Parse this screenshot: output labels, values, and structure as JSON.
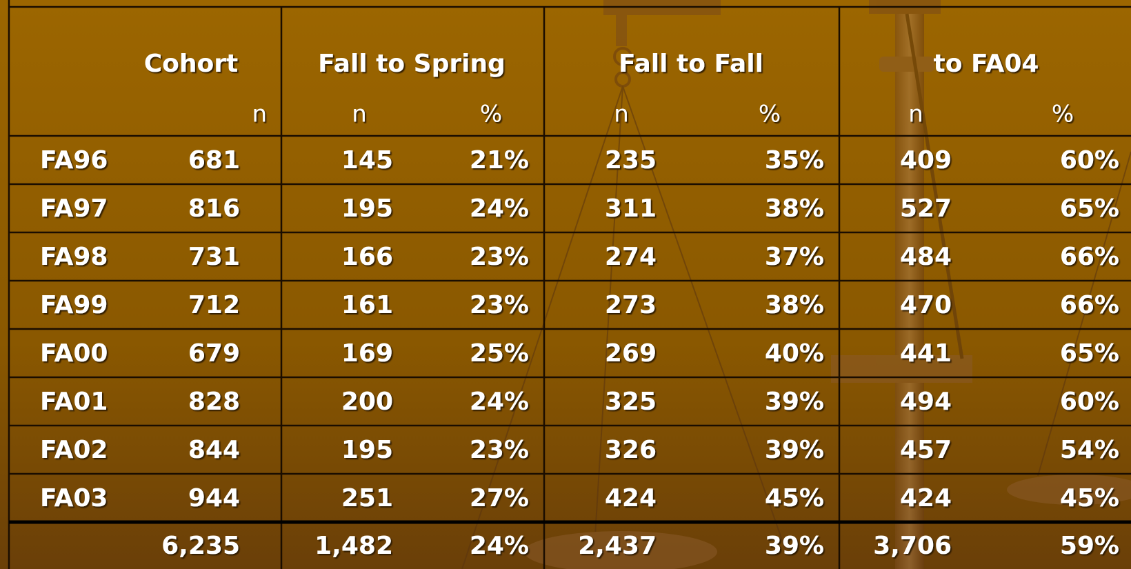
{
  "table": {
    "groups": [
      "Cohort",
      "Fall to Spring",
      "Fall to Fall",
      "to FA04"
    ],
    "subheaders": [
      "n",
      "n",
      "%",
      "n",
      "%",
      "n",
      "%"
    ],
    "rows": [
      [
        "FA96",
        "681",
        "145",
        "21%",
        "235",
        "35%",
        "409",
        "60%"
      ],
      [
        "FA97",
        "816",
        "195",
        "24%",
        "311",
        "38%",
        "527",
        "65%"
      ],
      [
        "FA98",
        "731",
        "166",
        "23%",
        "274",
        "37%",
        "484",
        "66%"
      ],
      [
        "FA99",
        "712",
        "161",
        "23%",
        "273",
        "38%",
        "470",
        "66%"
      ],
      [
        "FA00",
        "679",
        "169",
        "25%",
        "269",
        "40%",
        "441",
        "65%"
      ],
      [
        "FA01",
        "828",
        "200",
        "24%",
        "325",
        "39%",
        "494",
        "60%"
      ],
      [
        "FA02",
        "844",
        "195",
        "23%",
        "326",
        "39%",
        "457",
        "54%"
      ],
      [
        "FA03",
        "944",
        "251",
        "27%",
        "424",
        "45%",
        "424",
        "45%"
      ]
    ],
    "total": [
      "6,235",
      "1,482",
      "24%",
      "2,437",
      "39%",
      "3,706",
      "59%"
    ]
  }
}
